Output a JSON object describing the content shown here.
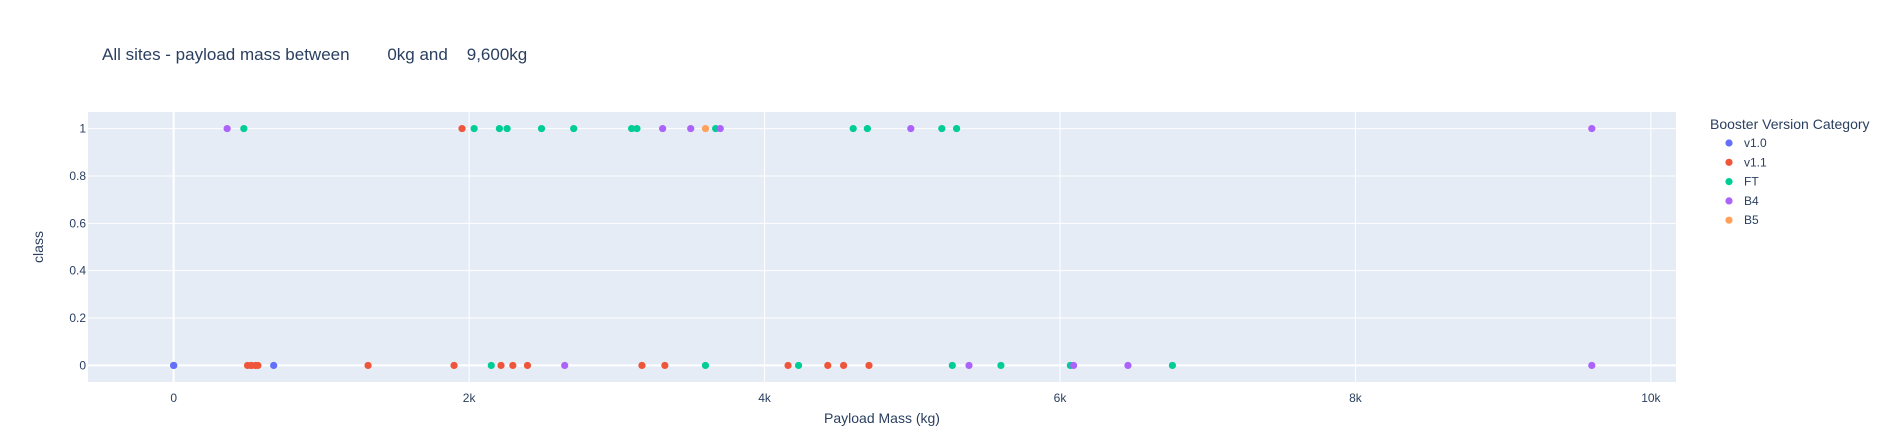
{
  "chart_data": {
    "type": "scatter",
    "title": "All sites - payload mass between        0kg and    9,600kg",
    "xlabel": "Payload Mass (kg)",
    "ylabel": "class",
    "xlim": [
      -580,
      10170
    ],
    "ylim": [
      -0.07,
      1.07
    ],
    "x_ticks": [
      0,
      2000,
      4000,
      6000,
      8000,
      10000
    ],
    "x_tick_labels": [
      "0",
      "2k",
      "4k",
      "6k",
      "8k",
      "10k"
    ],
    "y_ticks": [
      0,
      0.2,
      0.4,
      0.6,
      0.8,
      1
    ],
    "y_tick_labels": [
      "0",
      "0.2",
      "0.4",
      "0.6",
      "0.8",
      "1"
    ],
    "grid": true,
    "legend": {
      "title": "Booster Version Category",
      "placement": "right"
    },
    "series": [
      {
        "name": "v1.0",
        "color": "#636efa",
        "x": [
          0,
          0,
          525,
          677
        ],
        "y": [
          0,
          0,
          0,
          0
        ]
      },
      {
        "name": "v1.1",
        "color": "#ef553b",
        "x": [
          1952,
          500,
          525,
          553,
          570,
          1316,
          1898,
          2216,
          2296,
          2395,
          3170,
          3325,
          4159,
          4428,
          4535,
          4707
        ],
        "y": [
          1,
          0,
          0,
          0,
          0,
          0,
          0,
          0,
          0,
          0,
          0,
          0,
          0,
          0,
          0,
          0
        ]
      },
      {
        "name": "FT",
        "color": "#00cc96",
        "x": [
          475,
          2034,
          2205,
          2257,
          2490,
          2708,
          3100,
          3136,
          3669,
          4600,
          4696,
          5200,
          5300,
          2150,
          3600,
          4230,
          5271,
          5600,
          6070,
          6761
        ],
        "y": [
          1,
          1,
          1,
          1,
          1,
          1,
          1,
          1,
          1,
          1,
          1,
          1,
          1,
          0,
          0,
          0,
          0,
          0,
          0,
          0
        ]
      },
      {
        "name": "B4",
        "color": "#ab63fa",
        "x": [
          362,
          3310,
          3500,
          3700,
          4990,
          9600,
          2647,
          5384,
          6092,
          6460,
          9600
        ],
        "y": [
          1,
          1,
          1,
          1,
          1,
          1,
          0,
          0,
          0,
          0,
          0
        ]
      },
      {
        "name": "B5",
        "color": "#ffa15a",
        "x": [
          3600
        ],
        "y": [
          1
        ]
      }
    ]
  }
}
